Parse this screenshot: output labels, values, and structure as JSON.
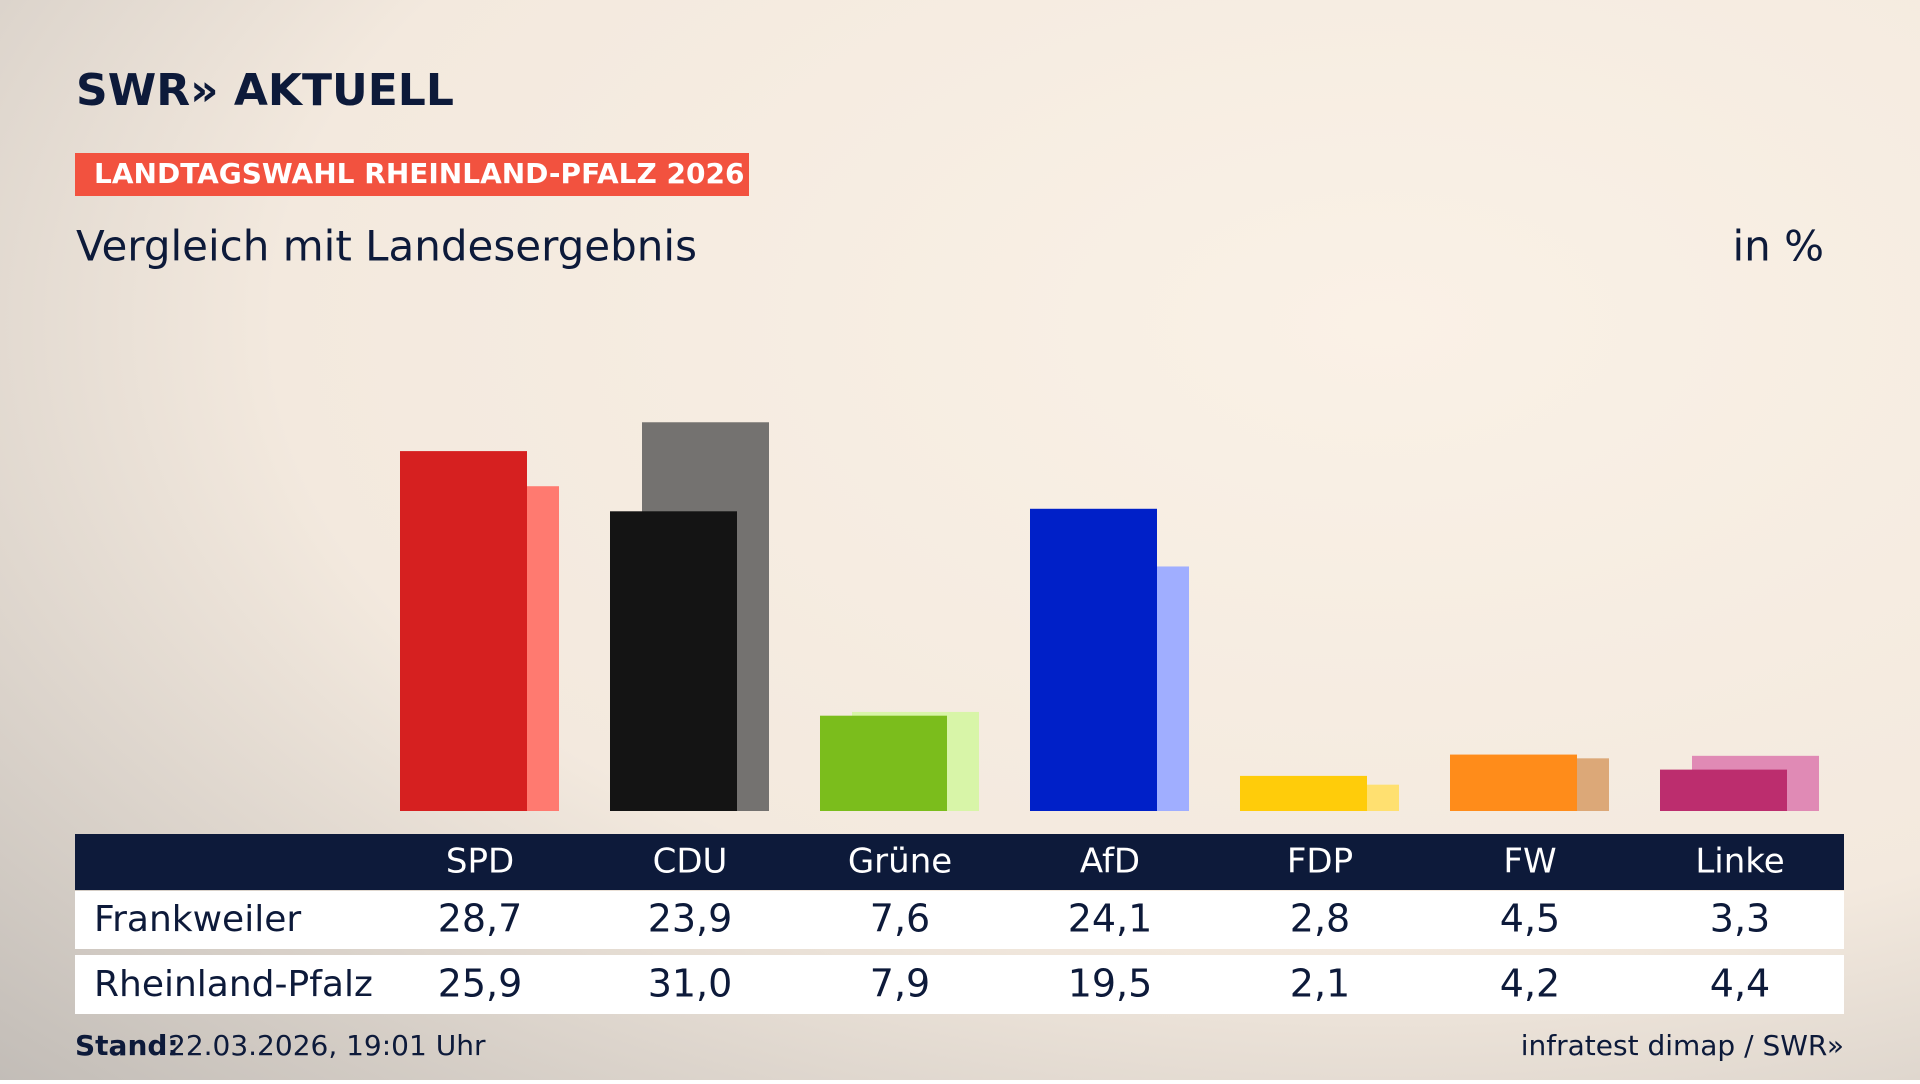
{
  "chart_data": {
    "type": "bar",
    "brand": "SWR» AKTUELL",
    "kicker": "LANDTAGSWAHL RHEINLAND-PFALZ 2026",
    "title": "Vergleich mit Landesergebnis",
    "unit": "in %",
    "categories": [
      "SPD",
      "CDU",
      "Grüne",
      "AfD",
      "FDP",
      "FW",
      "Linke"
    ],
    "series": [
      {
        "name": "Frankweiler",
        "values": [
          28.7,
          23.9,
          7.6,
          24.1,
          2.8,
          4.5,
          3.3
        ],
        "value_labels": [
          "28,7",
          "23,9",
          "7,6",
          "24,1",
          "2,8",
          "4,5",
          "3,3"
        ],
        "colors": [
          "#d62020",
          "#141414",
          "#7bbd1c",
          "#0020c8",
          "#ffcc0a",
          "#ff8c1a",
          "#bc2d6e"
        ]
      },
      {
        "name": "Rheinland-Pfalz",
        "values": [
          25.9,
          31.0,
          7.9,
          19.5,
          2.1,
          4.2,
          4.4
        ],
        "value_labels": [
          "25,9",
          "31,0",
          "7,9",
          "19,5",
          "2,1",
          "4,2",
          "4,4"
        ],
        "colors": [
          "#ff7a70",
          "#747270",
          "#d8f5a8",
          "#a0aeff",
          "#ffe070",
          "#dca878",
          "#e08ab5"
        ]
      }
    ],
    "footer_label": "Stand:",
    "footer_date": "22.03.2026, 19:01 Uhr",
    "source": "infratest dimap / SWR»"
  }
}
